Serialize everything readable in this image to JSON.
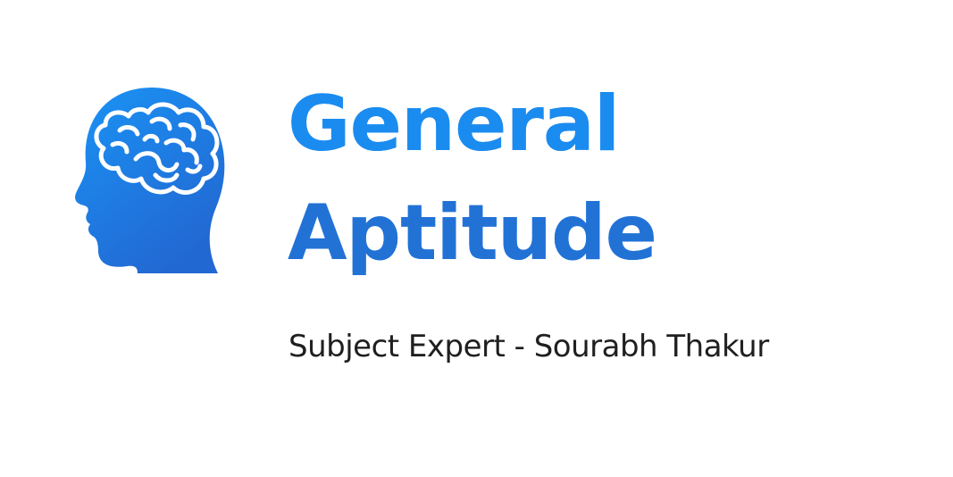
{
  "logo": {
    "icon": "head-brain-icon",
    "gradient_top": "#1a93f5",
    "gradient_bottom": "#2268d2"
  },
  "title": {
    "line1": "General",
    "line2": "Aptitude",
    "color_top": "#1a8cf0",
    "color_bottom": "#2272d6"
  },
  "subtitle": {
    "text": "Subject Expert - Sourabh Thakur",
    "color": "#1f1f1f"
  }
}
